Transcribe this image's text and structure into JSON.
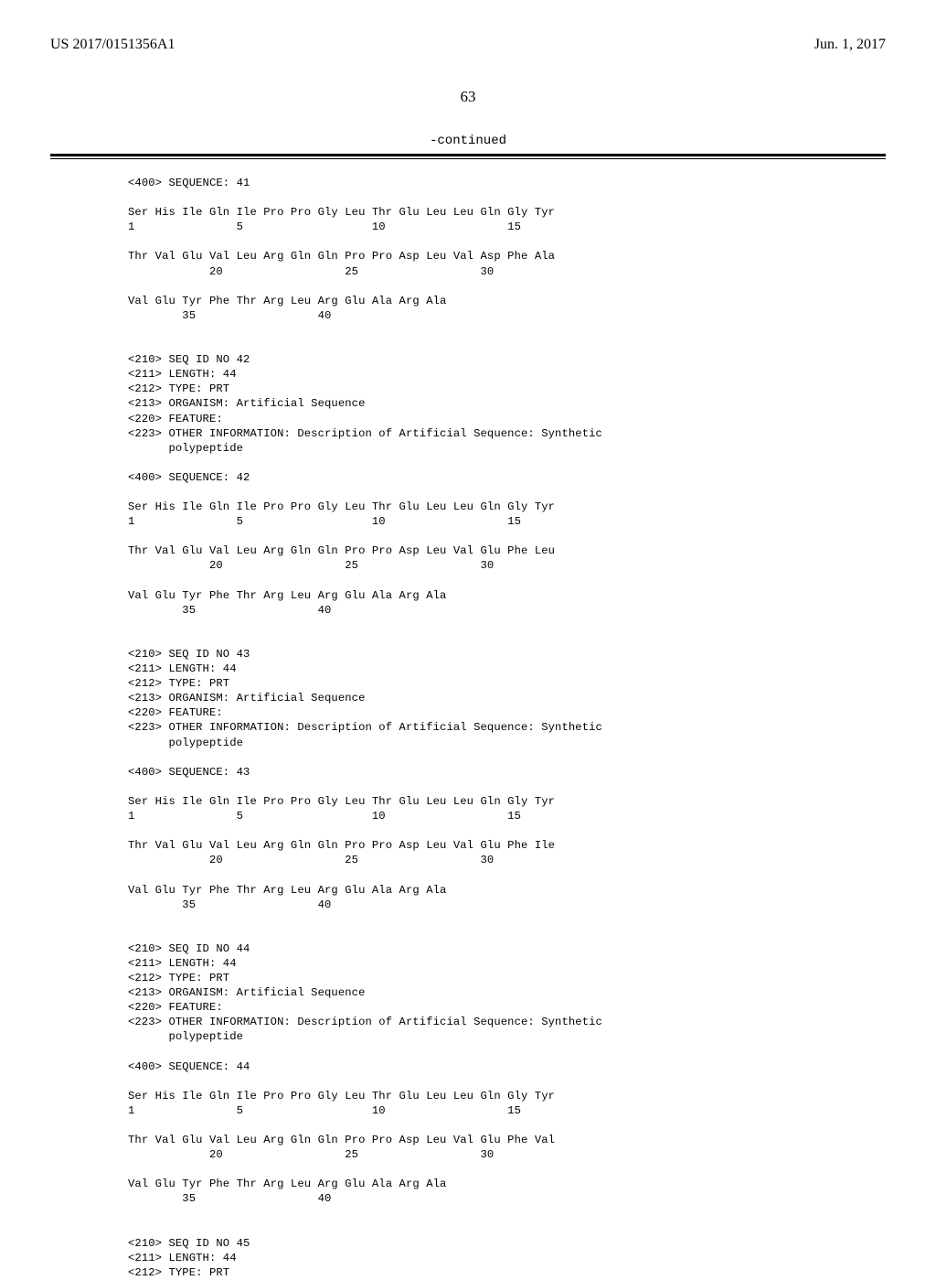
{
  "header": {
    "pub_number": "US 2017/0151356A1",
    "pub_date": "Jun. 1, 2017"
  },
  "page_number": "63",
  "continued_label": "-continued",
  "sequences": [
    {
      "seq_header": "<400> SEQUENCE: 41",
      "lines": [
        "Ser His Ile Gln Ile Pro Pro Gly Leu Thr Glu Leu Leu Gln Gly Tyr",
        "1               5                   10                  15",
        "",
        "Thr Val Glu Val Leu Arg Gln Gln Pro Pro Asp Leu Val Asp Phe Ala",
        "            20                  25                  30",
        "",
        "Val Glu Tyr Phe Thr Arg Leu Arg Glu Ala Arg Ala",
        "        35                  40"
      ],
      "def": [
        "<210> SEQ ID NO 42",
        "<211> LENGTH: 44",
        "<212> TYPE: PRT",
        "<213> ORGANISM: Artificial Sequence",
        "<220> FEATURE:",
        "<223> OTHER INFORMATION: Description of Artificial Sequence: Synthetic",
        "      polypeptide"
      ]
    },
    {
      "seq_header": "<400> SEQUENCE: 42",
      "lines": [
        "Ser His Ile Gln Ile Pro Pro Gly Leu Thr Glu Leu Leu Gln Gly Tyr",
        "1               5                   10                  15",
        "",
        "Thr Val Glu Val Leu Arg Gln Gln Pro Pro Asp Leu Val Glu Phe Leu",
        "            20                  25                  30",
        "",
        "Val Glu Tyr Phe Thr Arg Leu Arg Glu Ala Arg Ala",
        "        35                  40"
      ],
      "def": [
        "<210> SEQ ID NO 43",
        "<211> LENGTH: 44",
        "<212> TYPE: PRT",
        "<213> ORGANISM: Artificial Sequence",
        "<220> FEATURE:",
        "<223> OTHER INFORMATION: Description of Artificial Sequence: Synthetic",
        "      polypeptide"
      ]
    },
    {
      "seq_header": "<400> SEQUENCE: 43",
      "lines": [
        "Ser His Ile Gln Ile Pro Pro Gly Leu Thr Glu Leu Leu Gln Gly Tyr",
        "1               5                   10                  15",
        "",
        "Thr Val Glu Val Leu Arg Gln Gln Pro Pro Asp Leu Val Glu Phe Ile",
        "            20                  25                  30",
        "",
        "Val Glu Tyr Phe Thr Arg Leu Arg Glu Ala Arg Ala",
        "        35                  40"
      ],
      "def": [
        "<210> SEQ ID NO 44",
        "<211> LENGTH: 44",
        "<212> TYPE: PRT",
        "<213> ORGANISM: Artificial Sequence",
        "<220> FEATURE:",
        "<223> OTHER INFORMATION: Description of Artificial Sequence: Synthetic",
        "      polypeptide"
      ]
    },
    {
      "seq_header": "<400> SEQUENCE: 44",
      "lines": [
        "Ser His Ile Gln Ile Pro Pro Gly Leu Thr Glu Leu Leu Gln Gly Tyr",
        "1               5                   10                  15",
        "",
        "Thr Val Glu Val Leu Arg Gln Gln Pro Pro Asp Leu Val Glu Phe Val",
        "            20                  25                  30",
        "",
        "Val Glu Tyr Phe Thr Arg Leu Arg Glu Ala Arg Ala",
        "        35                  40"
      ],
      "def": [
        "<210> SEQ ID NO 45",
        "<211> LENGTH: 44",
        "<212> TYPE: PRT"
      ]
    }
  ]
}
